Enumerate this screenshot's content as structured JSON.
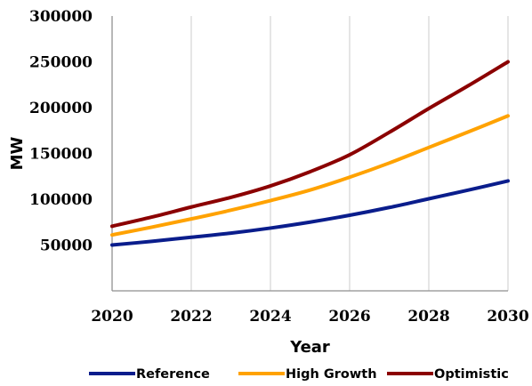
{
  "chart_data": {
    "type": "line",
    "title": "",
    "xlabel": "Year",
    "ylabel": "MW",
    "x": [
      2020,
      2021,
      2022,
      2023,
      2024,
      2025,
      2026,
      2027,
      2028,
      2029,
      2030
    ],
    "xlim": [
      2020,
      2030
    ],
    "ylim": [
      0,
      300000
    ],
    "x_ticks": [
      "2020",
      "2022",
      "2024",
      "2026",
      "2028",
      "2030"
    ],
    "y_ticks": [
      "50000",
      "100000",
      "150000",
      "200000",
      "250000",
      "300000"
    ],
    "grid": "vertical",
    "legend_position": "bottom",
    "series": [
      {
        "name": "Reference",
        "color": "#0a1d8c",
        "values": [
          50000,
          54000,
          58500,
          63000,
          68500,
          75000,
          82500,
          91000,
          100500,
          110000,
          120000
        ]
      },
      {
        "name": "High Growth",
        "color": "#ffa200",
        "values": [
          61000,
          69500,
          78500,
          88000,
          98500,
          110000,
          124000,
          139500,
          156500,
          173500,
          191000
        ]
      },
      {
        "name": "Optimistic",
        "color": "#8b0000",
        "values": [
          70500,
          80500,
          91500,
          102000,
          114500,
          130000,
          148500,
          173000,
          199000,
          224000,
          250000
        ]
      }
    ]
  }
}
